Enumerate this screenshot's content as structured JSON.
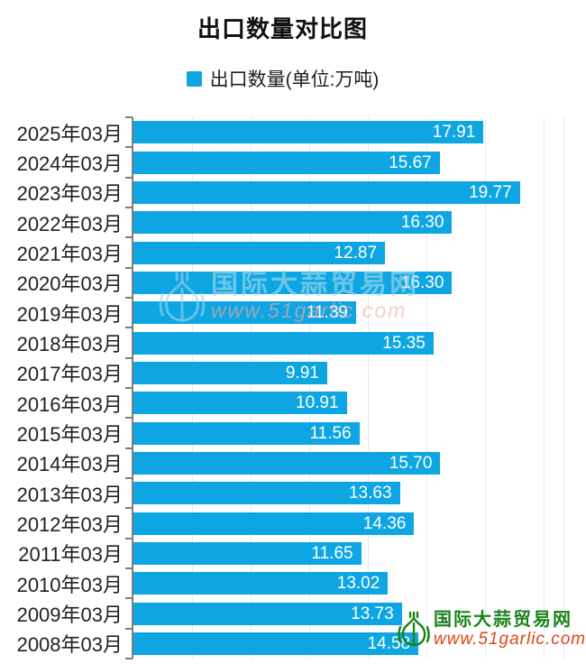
{
  "title": "出口数量对比图",
  "legend": {
    "label": "出口数量(单位:万吨)"
  },
  "chart_data": {
    "type": "bar",
    "orientation": "horizontal",
    "title": "出口数量对比图",
    "series_name": "出口数量",
    "unit": "万吨",
    "legend_position": "top",
    "grid": true,
    "xlim": [
      0,
      22
    ],
    "grid_interval": 3,
    "bar_color": "#0ea6e2",
    "value_label_color": "#ffffff",
    "categories": [
      "2025年03月",
      "2024年03月",
      "2023年03月",
      "2022年03月",
      "2021年03月",
      "2020年03月",
      "2019年03月",
      "2018年03月",
      "2017年03月",
      "2016年03月",
      "2015年03月",
      "2014年03月",
      "2013年03月",
      "2012年03月",
      "2011年03月",
      "2010年03月",
      "2009年03月",
      "2008年03月"
    ],
    "values": [
      17.91,
      15.67,
      19.77,
      16.3,
      12.87,
      16.3,
      11.39,
      15.35,
      9.91,
      10.91,
      11.56,
      15.7,
      13.63,
      14.36,
      11.65,
      13.02,
      13.73,
      14.58
    ]
  },
  "watermarks": {
    "center": {
      "site_name": "国际大蒜贸易网",
      "url": "www.51garlic.com",
      "name_color": "#aadcef",
      "url_color": "#f3aca4"
    },
    "bottom_right": {
      "site_name": "国际大蒜贸易网",
      "url": "www.51garlic.com",
      "name_color": "#1a831a",
      "url_color": "#dd4517"
    }
  }
}
